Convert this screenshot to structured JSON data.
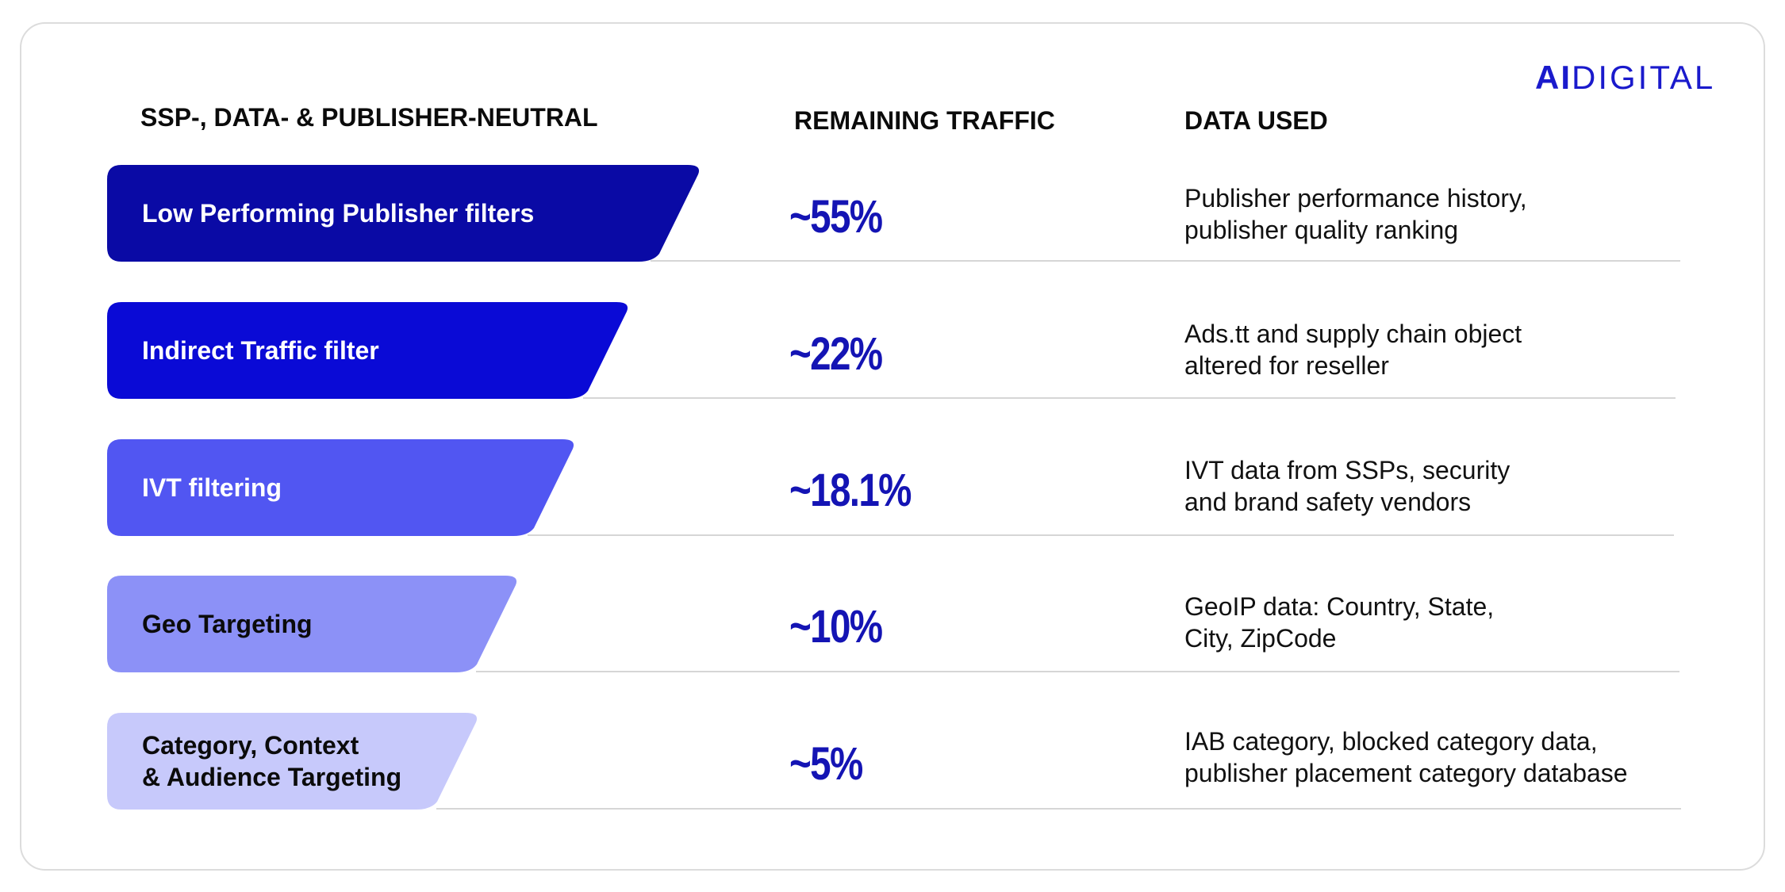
{
  "logo": {
    "prefix": "AI",
    "suffix": "DIGITAL",
    "color": "#1a1acc"
  },
  "headers": {
    "filters": "SSP-, DATA- & PUBLISHER-NEUTRAL",
    "remaining": "REMAINING TRAFFIC",
    "data_used": "DATA USED"
  },
  "rows": [
    {
      "filter_lines": [
        "Low Performing Publisher filters"
      ],
      "remaining": "~55%",
      "data_used_lines": [
        "Publisher performance history,",
        "publisher quality ranking"
      ],
      "color": "#0a0aa5",
      "text_color": "#ffffff"
    },
    {
      "filter_lines": [
        "Indirect Traffic filter"
      ],
      "remaining": "~22%",
      "data_used_lines": [
        "Ads.tt and supply chain object",
        "altered for reseller"
      ],
      "color": "#0a0ad6",
      "text_color": "#ffffff"
    },
    {
      "filter_lines": [
        "IVT filtering"
      ],
      "remaining": "~18.1%",
      "data_used_lines": [
        "IVT data from SSPs, security",
        "and brand safety vendors"
      ],
      "color": "#5156f2",
      "text_color": "#ffffff"
    },
    {
      "filter_lines": [
        "Geo Targeting"
      ],
      "remaining": "~10%",
      "data_used_lines": [
        "GeoIP data: Country, State,",
        "City, ZipCode"
      ],
      "color": "#8c91f7",
      "text_color": "#0b0b0b"
    },
    {
      "filter_lines": [
        "Category, Context",
        "& Audience Targeting"
      ],
      "remaining": "~5%",
      "data_used_lines": [
        "IAB category, blocked category data,",
        "publisher placement category database"
      ],
      "color": "#c7c9fb",
      "text_color": "#0b0b0b"
    }
  ]
}
